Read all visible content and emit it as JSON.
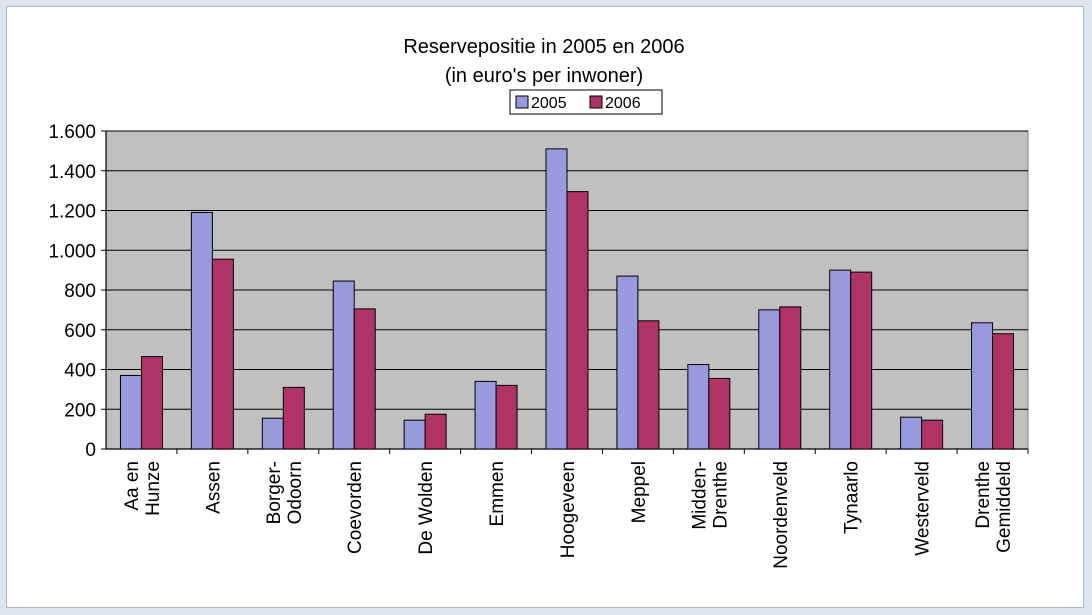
{
  "chart_data": {
    "type": "bar",
    "title": "Reservepositie in 2005 en 2006",
    "subtitle": "(in euro's per inwoner)",
    "categories": [
      [
        "Aa en",
        "Hunze"
      ],
      [
        "Assen"
      ],
      [
        "Borger-",
        "Odoorn"
      ],
      [
        "Coevorden"
      ],
      [
        "De Wolden"
      ],
      [
        "Emmen"
      ],
      [
        "Hoogeveen"
      ],
      [
        "Meppel"
      ],
      [
        "Midden-",
        "Drenthe"
      ],
      [
        "Noordenveld"
      ],
      [
        "Tynaarlo"
      ],
      [
        "Westerveld"
      ],
      [
        "Drenthe",
        "Gemiddeld"
      ]
    ],
    "series": [
      {
        "name": "2005",
        "color": "#9999dd",
        "values": [
          370,
          1190,
          155,
          845,
          145,
          340,
          1510,
          870,
          425,
          700,
          900,
          160,
          635
        ]
      },
      {
        "name": "2006",
        "color": "#b03366",
        "values": [
          465,
          955,
          310,
          705,
          175,
          320,
          1295,
          645,
          355,
          715,
          890,
          145,
          580
        ]
      }
    ],
    "ylim": [
      0,
      1600
    ],
    "yticks": [
      0,
      200,
      400,
      600,
      800,
      1000,
      1200,
      1400,
      1600
    ],
    "ytick_labels": [
      "0",
      "200",
      "400",
      "600",
      "800",
      "1.000",
      "1.200",
      "1.400",
      "1.600"
    ],
    "grid": true,
    "plot_background": "#c0c0c0",
    "legend": "top-center"
  }
}
